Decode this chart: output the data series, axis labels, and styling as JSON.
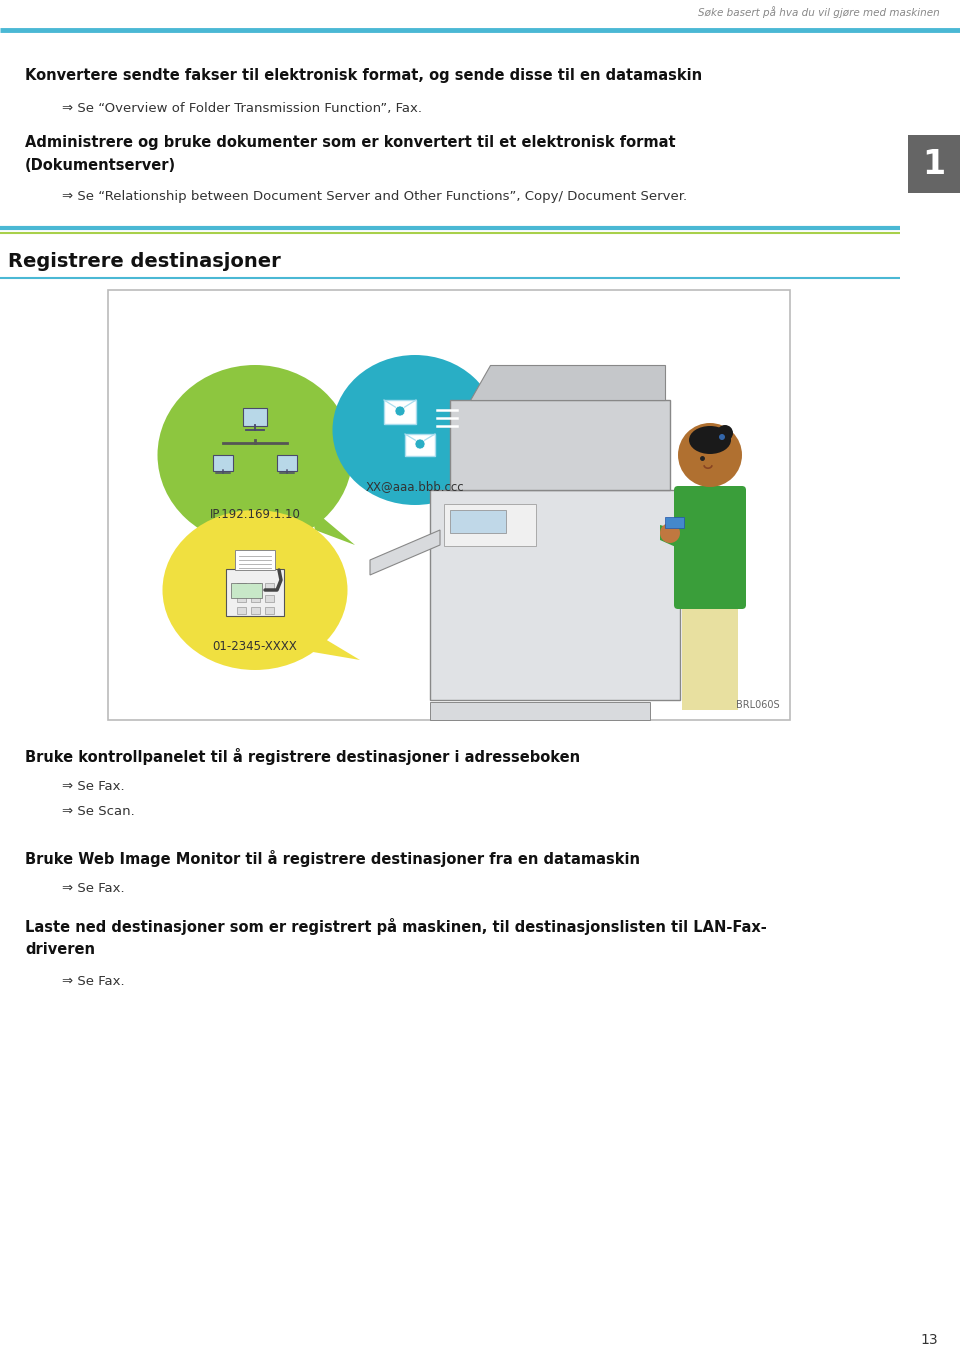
{
  "header_text": "Søke basert på hva du vil gjøre med maskinen",
  "header_line_color": "#4ab8d4",
  "bg_color": "#ffffff",
  "tab_color": "#656565",
  "tab_text": "1",
  "section1_bold": "Konvertere sendte fakser til elektronisk format, og sende disse til en datamaskin",
  "section1_sub": "⇒ Se “Overview of Folder Transmission Function”, Fax.",
  "section2_bold_line1": "Administrere og bruke dokumenter som er konvertert til et elektronisk format",
  "section2_bold_line2": "(Dokumentserver)",
  "section2_sub": "⇒ Se “Relationship between Document Server and Other Functions”, Copy/ Document Server.",
  "section3_title": "Registrere destinasjoner",
  "bubble_green_color": "#8dc63f",
  "bubble_cyan_color": "#29aec5",
  "bubble_yellow_color": "#f0e040",
  "bubble_ip_text": "IP.192.169.1.10",
  "bubble_email_text": "XX@aaa.bbb.ccc",
  "bubble_fax_text": "01-2345-XXXX",
  "image_ref": "BRL060S",
  "section4_bold": "Bruke kontrollpanelet til å registrere destinasjoner i adresseboken",
  "section4_sub1": "⇒ Se Fax.",
  "section4_sub2": "⇒ Se Scan.",
  "section5_bold": "Bruke Web Image Monitor til å registrere destinasjoner fra en datamaskin",
  "section5_sub": "⇒ Se Fax.",
  "section6_bold_line1": "Laste ned destinasjoner som er registrert på maskinen, til destinasjonslisten til LAN-Fax-",
  "section6_bold_line2": "driveren",
  "section6_sub": "⇒ Se Fax.",
  "page_number": "13"
}
